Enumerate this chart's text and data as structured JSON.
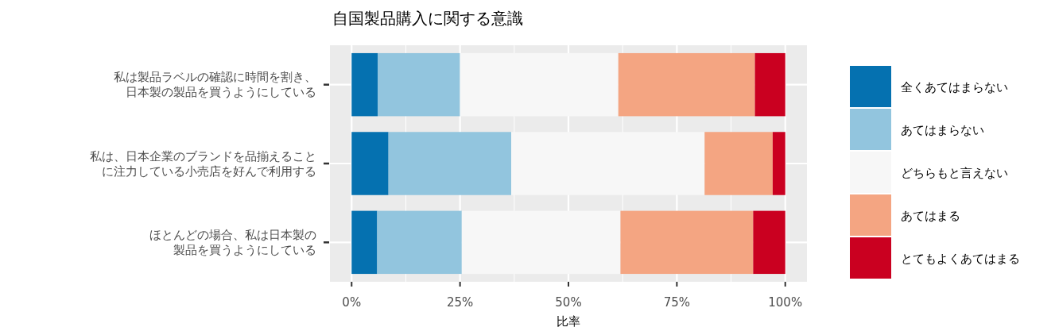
{
  "chart_data": {
    "type": "bar",
    "title": "自国製品購入に関する意識",
    "xlabel": "比率",
    "orientation": "horizontal",
    "stacked": true,
    "grid": true,
    "legend": "right",
    "categories": [
      "私は製品ラベルの確認に時間を割き、日本製の製品を買うようにしている",
      "私は、日本企業のブランドを品揃えることに注力している小売店を好んで利用する",
      "ほとんどの場合、私は日本製の製品を買うようにしている"
    ],
    "xlim": [
      -5,
      105
    ],
    "xticks": [
      {
        "value": 0,
        "label": "0%"
      },
      {
        "value": 25,
        "label": "25%"
      },
      {
        "value": 50,
        "label": "50%"
      },
      {
        "value": 75,
        "label": "75%"
      },
      {
        "value": 100,
        "label": "100%"
      }
    ],
    "series": [
      {
        "name": "全くあてはまらない",
        "color": "#0571b0",
        "values": [
          6,
          8.5,
          5.9
        ]
      },
      {
        "name": "あてはまらない",
        "color": "#92c5de",
        "values": [
          19,
          28.3,
          19.5
        ]
      },
      {
        "name": "どちらもと言えない",
        "color": "#f7f7f7",
        "values": [
          36.5,
          44.6,
          36.6
        ]
      },
      {
        "name": "あてはまる",
        "color": "#f4a582",
        "values": [
          31.5,
          15.7,
          30.6
        ]
      },
      {
        "name": "とてもよくあてはまる",
        "color": "#ca0020",
        "values": [
          7,
          2.9,
          7.4
        ]
      }
    ]
  }
}
